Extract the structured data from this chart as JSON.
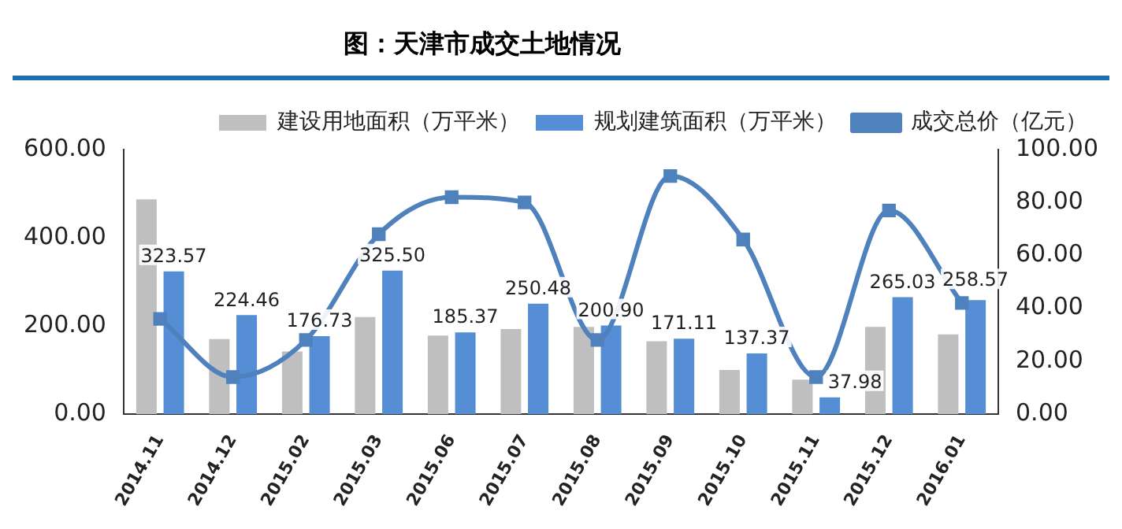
{
  "chart_data": {
    "type": "bar",
    "title": "图：天津市成交土地情况",
    "categories": [
      "2014.11",
      "2014.12",
      "2015.02",
      "2015.03",
      "2015.06",
      "2015.07",
      "2015.08",
      "2015.09",
      "2015.10",
      "2015.11",
      "2015.12",
      "2016.01"
    ],
    "series": [
      {
        "name": "建设用地面积（万平米）",
        "color": "#bfbfbf",
        "values": [
          487,
          170,
          142,
          220,
          178,
          193,
          198,
          165,
          100,
          78,
          198,
          181
        ]
      },
      {
        "name": "规划建筑面积（万平米）",
        "color": "#558ed5",
        "values": [
          323.57,
          224.46,
          176.73,
          325.5,
          185.37,
          250.48,
          200.9,
          171.11,
          137.37,
          37.98,
          265.03,
          258.57
        ],
        "value_labels": [
          "323.57",
          "224.46",
          "176.73",
          "325.50",
          "185.37",
          "250.48",
          "200.90",
          "171.11",
          "137.37",
          "37.98",
          "265.03",
          "258.57"
        ]
      },
      {
        "name": "成交总价（亿元）",
        "type": "line",
        "axis": "y2",
        "color": "#4f81bd",
        "values": [
          36,
          14,
          28,
          68,
          82,
          80,
          28,
          90,
          66,
          14,
          77,
          42
        ]
      }
    ],
    "ylim": [
      0,
      600
    ],
    "yticks": [
      {
        "value": 0,
        "label": "0.00"
      },
      {
        "value": 200,
        "label": "200.00"
      },
      {
        "value": 400,
        "label": "400.00"
      },
      {
        "value": 600,
        "label": "600.00"
      }
    ],
    "y2lim": [
      0,
      100
    ],
    "y2ticks": [
      {
        "value": 0,
        "label": "0.00"
      },
      {
        "value": 20,
        "label": "20.00"
      },
      {
        "value": 40,
        "label": "40.00"
      },
      {
        "value": 60,
        "label": "60.00"
      },
      {
        "value": 80,
        "label": "80.00"
      },
      {
        "value": 100,
        "label": "100.00"
      }
    ],
    "legend": "top",
    "grid": false,
    "marker": "square",
    "line_style": "solid"
  }
}
